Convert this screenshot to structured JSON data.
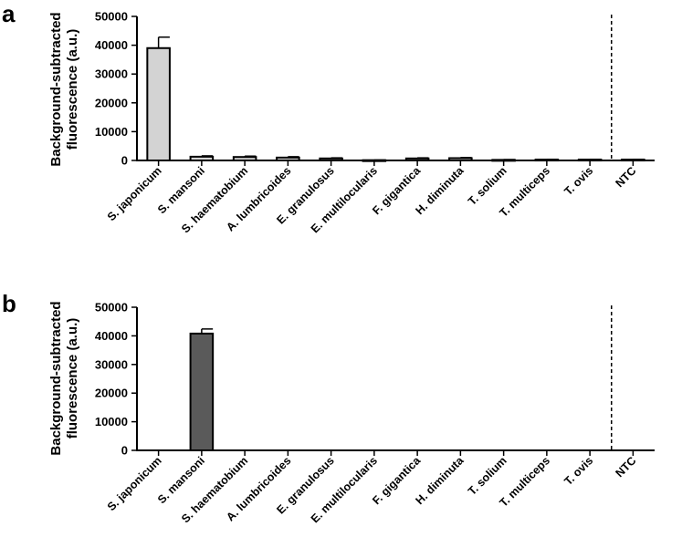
{
  "chart_data": [
    {
      "panel": "a",
      "type": "bar",
      "ylabel_line1": "Background-subtracted",
      "ylabel_line2": "fluorescence (a.u.)",
      "ylim": [
        0,
        50000
      ],
      "yticks": [
        0,
        10000,
        20000,
        30000,
        40000,
        50000
      ],
      "bar_color": "#d3d3d3",
      "categories": [
        "S. japonicum",
        "S. mansoni",
        "S. haematobium",
        "A. lumbricoides",
        "E. granulosus",
        "E. multilocularis",
        "F. gigantica",
        "H. diminuta",
        "T. solium",
        "T. multiceps",
        "T. ovis",
        "NTC"
      ],
      "values": [
        39000,
        1300,
        1200,
        1000,
        700,
        100,
        700,
        800,
        200,
        300,
        300,
        300
      ],
      "errors": [
        3800,
        300,
        300,
        300,
        200,
        50,
        200,
        200,
        100,
        100,
        100,
        100
      ],
      "divider_after": "T. ovis"
    },
    {
      "panel": "b",
      "type": "bar",
      "ylabel_line1": "Background-subtracted",
      "ylabel_line2": "fluorescence (a.u.)",
      "ylim": [
        0,
        50000
      ],
      "yticks": [
        0,
        10000,
        20000,
        30000,
        40000,
        50000
      ],
      "bar_color": "#5a5a5a",
      "categories": [
        "S. japonicum",
        "S. mansoni",
        "S. haematobium",
        "A. lumbricoides",
        "E. granulosus",
        "E. multilocularis",
        "F. gigantica",
        "H. diminuta",
        "T. solium",
        "T. multiceps",
        "T. ovis",
        "NTC"
      ],
      "values": [
        0,
        40800,
        0,
        0,
        0,
        0,
        0,
        0,
        0,
        0,
        0,
        0
      ],
      "errors": [
        0,
        1600,
        0,
        0,
        0,
        0,
        0,
        0,
        0,
        0,
        0,
        0
      ],
      "divider_after": "T. ovis"
    }
  ]
}
